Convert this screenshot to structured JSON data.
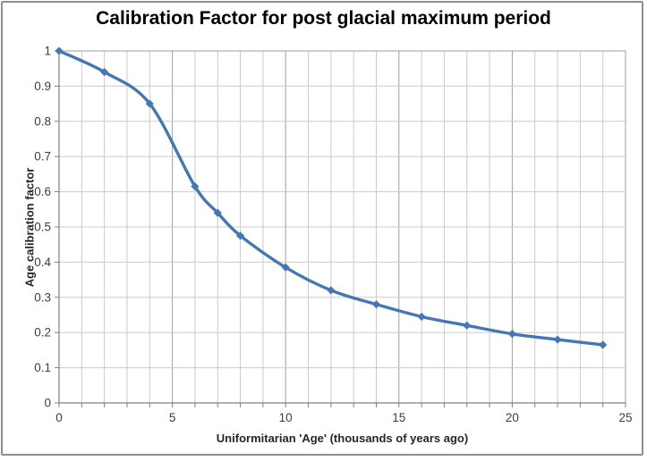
{
  "chart_data": {
    "type": "line",
    "title": "Calibration Factor for post glacial maximum period",
    "xlabel": "Uniformitarian 'Age' (thousands of years ago)",
    "ylabel": "Age calibration factor",
    "x": [
      0,
      2,
      4,
      6,
      7,
      8,
      10,
      12,
      14,
      16,
      18,
      20,
      22,
      24
    ],
    "y": [
      1.0,
      0.94,
      0.85,
      0.615,
      0.54,
      0.475,
      0.385,
      0.32,
      0.28,
      0.245,
      0.22,
      0.196,
      0.18,
      0.165
    ],
    "xlim": [
      0,
      25
    ],
    "ylim": [
      0,
      1
    ],
    "x_tick_labels": [
      "0",
      "5",
      "10",
      "15",
      "20",
      "25"
    ],
    "x_tick_values": [
      0,
      5,
      10,
      15,
      20,
      25
    ],
    "y_tick_labels": [
      "1",
      "0.9",
      "0.8",
      "0.7",
      "0.6",
      "0.5",
      "0.4",
      "0.3",
      "0.2",
      "0.1",
      "0"
    ],
    "y_tick_values": [
      1,
      0.9,
      0.8,
      0.7,
      0.6,
      0.5,
      0.4,
      0.3,
      0.2,
      0.1,
      0
    ],
    "x_gridline_step": 1,
    "grid": true,
    "legend": "none",
    "smooth_line": true,
    "marker": "diamond",
    "colors": {
      "series_line": "#4677b5",
      "marker_fill": "#4677b5",
      "grid_minor": "#cbcbcb",
      "grid_major": "#9e9e9e",
      "axis_line": "#7f7f7f",
      "tick_label": "#3d3d3d",
      "title_text": "#000000",
      "frame_border": "#8f8f8f"
    }
  }
}
